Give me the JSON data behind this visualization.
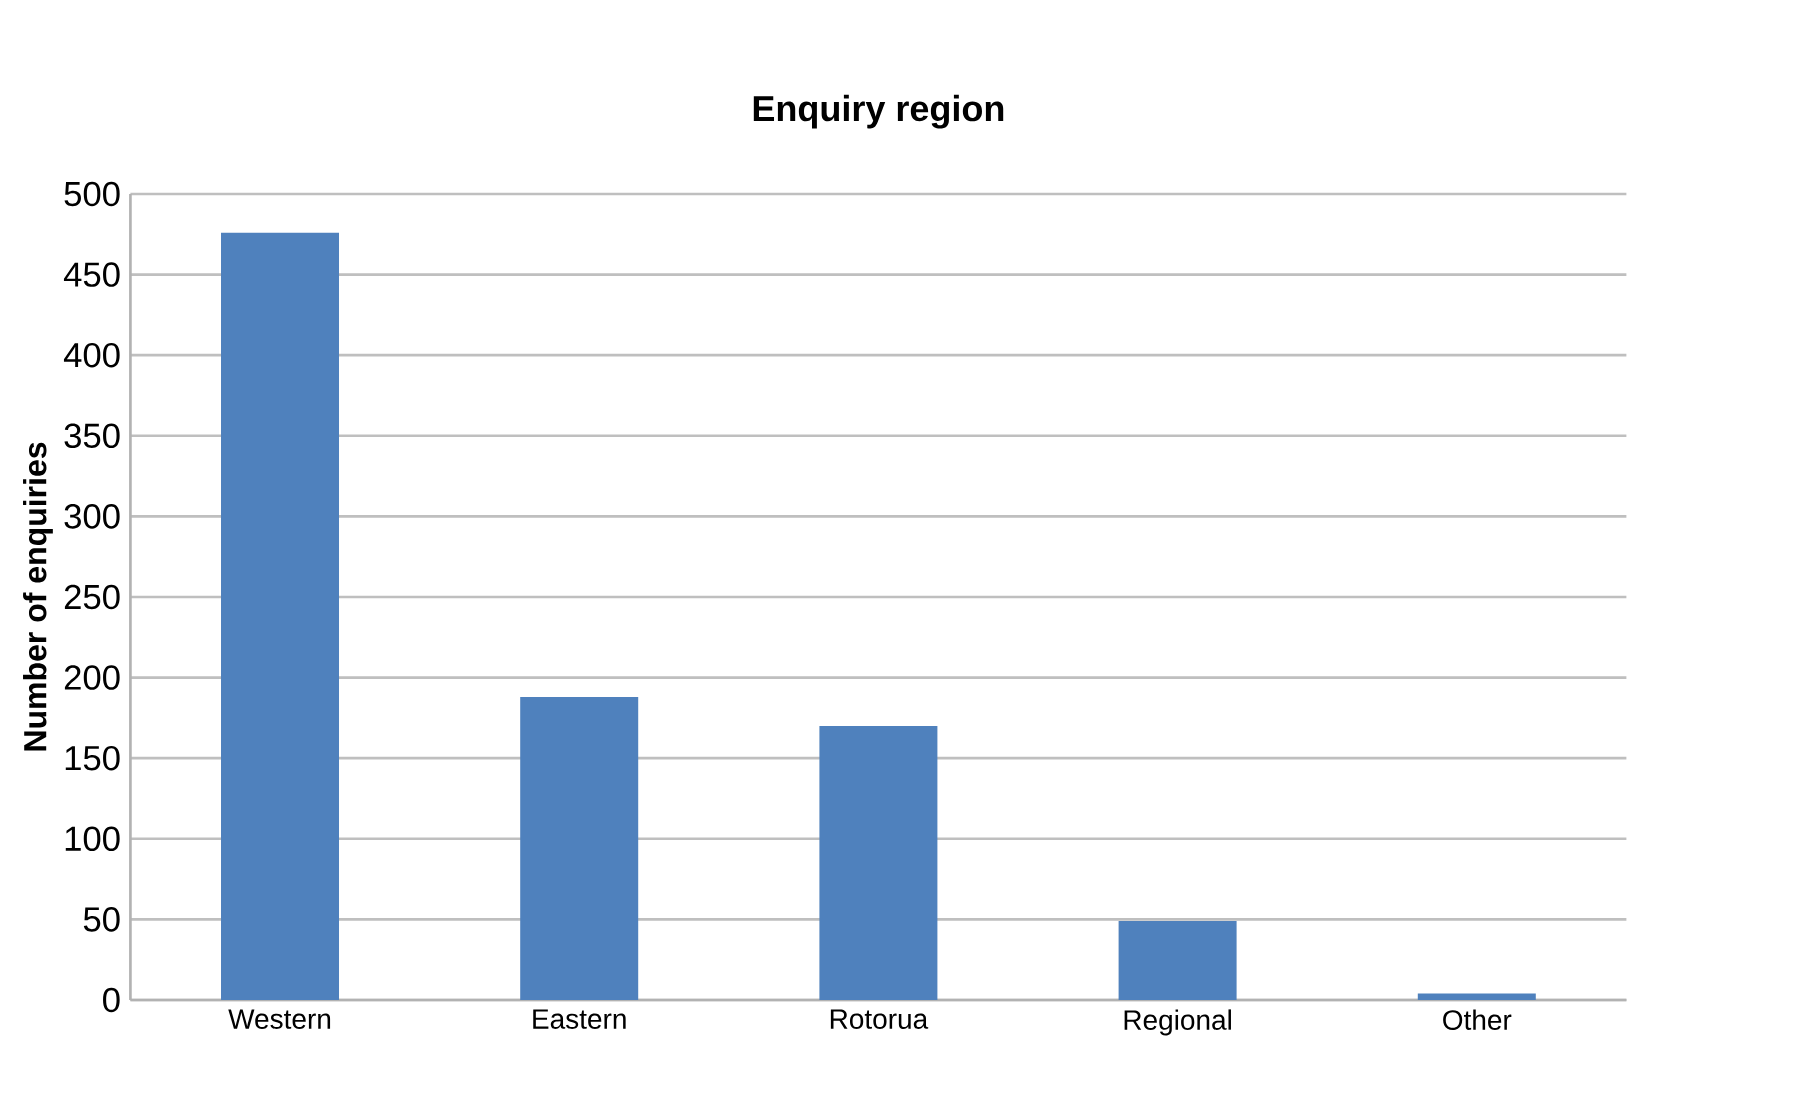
{
  "chart_data": {
    "type": "bar",
    "title": "Enquiry region",
    "ylabel": "Number of enquiries",
    "categories": [
      "Western",
      "Eastern",
      "Rotorua",
      "Regional",
      "Other"
    ],
    "values": [
      476,
      188,
      170,
      49,
      4
    ],
    "color": "#4f81bd",
    "ylim": [
      0,
      500
    ],
    "yticks": [
      0,
      50,
      100,
      150,
      200,
      250,
      300,
      350,
      400,
      450,
      500
    ],
    "grid": "y"
  }
}
